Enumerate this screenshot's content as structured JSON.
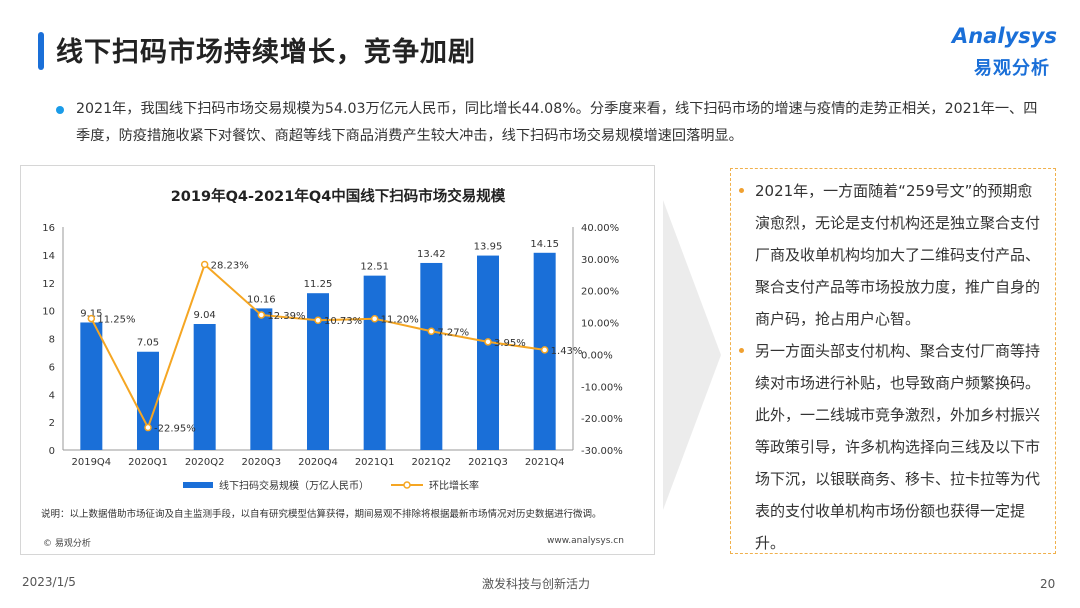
{
  "page": {
    "title": "线下扫码市场持续增长，竞争加剧",
    "summary": "2021年，我国线下扫码市场交易规模为54.03万亿元人民币，同比增长44.08%。分季度来看，线下扫码市场的增速与疫情的走势正相关，2021年一、四季度，防疫措施收紧下对餐饮、商超等线下商品消费产生较大冲击，线下扫码市场交易规模增速回落明显。",
    "footer_date": "2023/1/5",
    "footer_slogan": "激发科技与创新活力",
    "page_number": "20"
  },
  "logo": {
    "en": "Analysys",
    "cn": "易观分析"
  },
  "chart_data": {
    "type": "bar",
    "title": "2019年Q4-2021年Q4中国线下扫码市场交易规模",
    "categories": [
      "2019Q4",
      "2020Q1",
      "2020Q2",
      "2020Q3",
      "2020Q4",
      "2021Q1",
      "2021Q2",
      "2021Q3",
      "2021Q4"
    ],
    "series": [
      {
        "name": "线下扫码交易规模（万亿人民币）",
        "type": "bar",
        "axis": "left",
        "values": [
          9.15,
          7.05,
          9.04,
          10.16,
          11.25,
          12.51,
          13.42,
          13.95,
          14.15
        ],
        "labels": [
          "9.15",
          "7.05",
          "9.04",
          "10.16",
          "11.25",
          "12.51",
          "13.42",
          "13.95",
          "14.15"
        ],
        "color": "#1a6fd8"
      },
      {
        "name": "环比增长率",
        "type": "line",
        "axis": "right",
        "values": [
          11.25,
          -22.95,
          28.23,
          12.39,
          10.73,
          11.2,
          7.27,
          3.95,
          1.43
        ],
        "labels": [
          "11.25%",
          "-22.95%",
          "28.23%",
          "12.39%",
          "10.73%",
          "11.20%",
          "7.27%",
          "3.95%",
          "1.43%"
        ],
        "color": "#f5a623"
      }
    ],
    "y_left": {
      "min": 0,
      "max": 16,
      "ticks": [
        0,
        2,
        4,
        6,
        8,
        10,
        12,
        14,
        16
      ]
    },
    "y_right": {
      "min": -30,
      "max": 40,
      "ticks": [
        -30,
        -20,
        -10,
        0,
        10,
        20,
        30,
        40
      ],
      "tick_labels": [
        "-30.00%",
        "-20.00%",
        "-10.00%",
        "0.00%",
        "10.00%",
        "20.00%",
        "30.00%",
        "40.00%"
      ]
    },
    "legend_position": "bottom",
    "grid": false
  },
  "chart_notes": {
    "source": "说明：以上数据借助市场征询及自主监测手段，以自有研究模型估算获得，期间易观不排除将根据最新市场情况对历史数据进行微调。",
    "copyright": "© 易观分析",
    "site": "www.analysys.cn"
  },
  "side_panel": {
    "items": [
      "2021年，一方面随着“259号文”的预期愈演愈烈，无论是支付机构还是独立聚合支付厂商及收单机构均加大了二维码支付产品、聚合支付产品等市场投放力度，推广自身的商户码，抢占用户心智。",
      "另一方面头部支付机构、聚合支付厂商等持续对市场进行补贴，也导致商户频繁换码。此外，一二线城市竞争激烈，外加乡村振兴等政策引导，许多机构选择向三线及以下市场下沉，以银联商务、移卡、拉卡拉等为代表的支付收单机构市场份额也获得一定提升。"
    ]
  },
  "colors": {
    "accent": "#1a6fd8",
    "bar": "#1a6fd8",
    "line": "#f5a623",
    "side_border": "#f0b04c"
  }
}
